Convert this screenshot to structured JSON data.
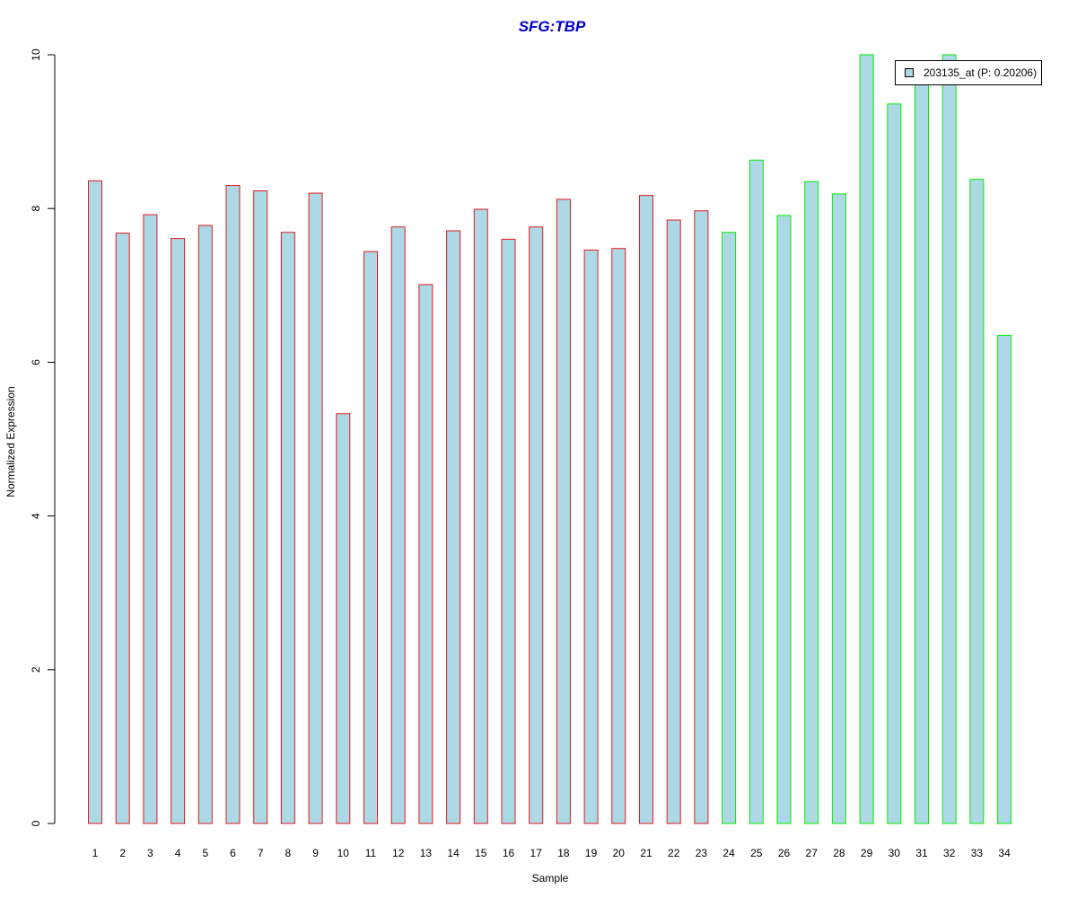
{
  "chart_data": {
    "type": "bar",
    "title": "SFG:TBP",
    "xlabel": "Sample",
    "ylabel": "Normalized Expression",
    "ylim": [
      0,
      10
    ],
    "yticks": [
      0,
      2,
      4,
      6,
      8,
      10
    ],
    "categories": [
      "1",
      "2",
      "3",
      "4",
      "5",
      "6",
      "7",
      "8",
      "9",
      "10",
      "11",
      "12",
      "13",
      "14",
      "15",
      "16",
      "17",
      "18",
      "19",
      "20",
      "21",
      "22",
      "23",
      "24",
      "25",
      "26",
      "27",
      "28",
      "29",
      "30",
      "31",
      "32",
      "33",
      "34"
    ],
    "values": [
      8.36,
      7.68,
      7.92,
      7.61,
      7.78,
      8.3,
      8.23,
      7.69,
      8.2,
      5.33,
      7.44,
      7.76,
      7.01,
      7.71,
      7.99,
      7.6,
      7.76,
      8.12,
      7.46,
      7.48,
      8.17,
      7.85,
      7.97,
      7.69,
      8.63,
      7.91,
      8.35,
      8.19,
      10.0,
      9.36,
      9.62,
      10.0,
      8.38,
      6.35
    ],
    "groups": [
      "red",
      "red",
      "red",
      "red",
      "red",
      "red",
      "red",
      "red",
      "red",
      "red",
      "red",
      "red",
      "red",
      "red",
      "red",
      "red",
      "red",
      "red",
      "red",
      "red",
      "red",
      "red",
      "red",
      "green",
      "green",
      "green",
      "green",
      "green",
      "green",
      "green",
      "green",
      "green",
      "green",
      "green"
    ],
    "fill_color": "#add8e6",
    "group_colors": {
      "red": "#e41a1c",
      "green": "#00ee00"
    },
    "legend": {
      "label": "203135_at (P: 0.20206)",
      "placement": "top-right"
    },
    "grid": false
  }
}
